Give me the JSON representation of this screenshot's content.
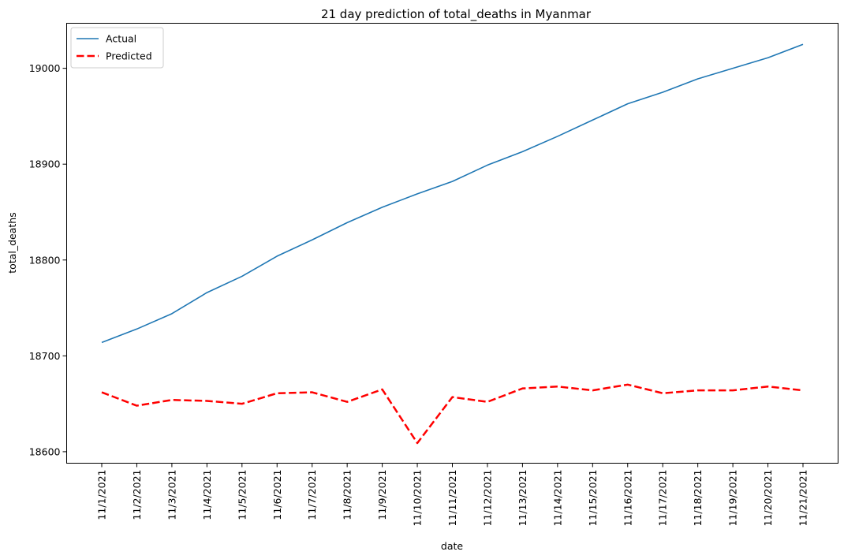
{
  "chart_data": {
    "type": "line",
    "title": "21 day prediction of total_deaths in Myanmar",
    "xlabel": "date",
    "ylabel": "total_deaths",
    "categories": [
      "11/1/2021",
      "11/2/2021",
      "11/3/2021",
      "11/4/2021",
      "11/5/2021",
      "11/6/2021",
      "11/7/2021",
      "11/8/2021",
      "11/9/2021",
      "11/10/2021",
      "11/11/2021",
      "11/12/2021",
      "11/13/2021",
      "11/14/2021",
      "11/15/2021",
      "11/16/2021",
      "11/17/2021",
      "11/18/2021",
      "11/19/2021",
      "11/20/2021",
      "11/21/2021"
    ],
    "ylim": [
      18588,
      19047
    ],
    "yticks": [
      18600,
      18700,
      18800,
      18900,
      19000
    ],
    "grid": false,
    "legend": "top-left",
    "series": [
      {
        "name": "Actual",
        "color": "#1f77b4",
        "style": "solid",
        "values": [
          18714,
          18728,
          18744,
          18766,
          18783,
          18804,
          18821,
          18839,
          18855,
          18869,
          18882,
          18899,
          18913,
          18929,
          18946,
          18963,
          18975,
          18989,
          19000,
          19011,
          19025
        ]
      },
      {
        "name": "Predicted",
        "color": "#ff0000",
        "style": "dashed",
        "values": [
          18662,
          18648,
          18654,
          18653,
          18650,
          18661,
          18662,
          18652,
          18665,
          18609,
          18657,
          18652,
          18666,
          18668,
          18664,
          18670,
          18661,
          18664,
          18664,
          18668,
          18664
        ]
      }
    ]
  }
}
